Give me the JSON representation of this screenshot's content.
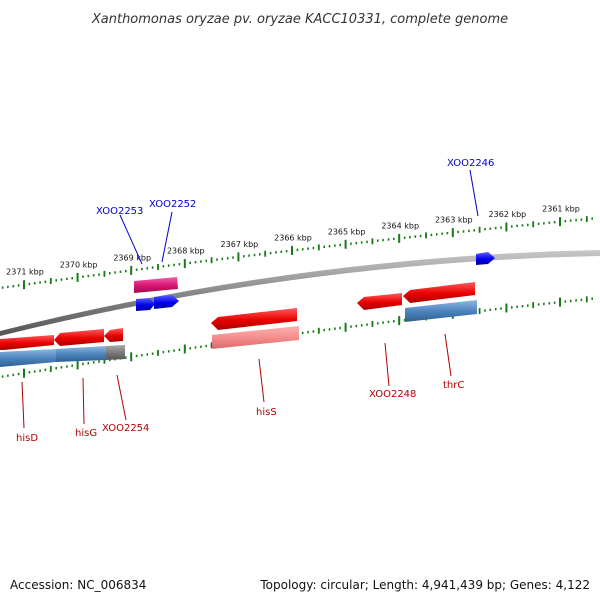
{
  "title": "Xanthomonas oryzae pv. oryzae KACC10331, complete genome",
  "footer": {
    "accession": "Accession: NC_006834",
    "summary": "Topology: circular; Length: 4,941,439 bp; Genes: 4,122"
  },
  "ticks": [
    {
      "label": "2361 kbp",
      "kbp": 2361
    },
    {
      "label": "2362 kbp",
      "kbp": 2362
    },
    {
      "label": "2363 kbp",
      "kbp": 2363
    },
    {
      "label": "2364 kbp",
      "kbp": 2364
    },
    {
      "label": "2365 kbp",
      "kbp": 2365
    },
    {
      "label": "2366 kbp",
      "kbp": 2366
    },
    {
      "label": "2367 kbp",
      "kbp": 2367
    },
    {
      "label": "2368 kbp",
      "kbp": 2368
    },
    {
      "label": "2369 kbp",
      "kbp": 2369
    },
    {
      "label": "2370 kbp",
      "kbp": 2370
    },
    {
      "label": "2371 kbp",
      "kbp": 2371
    }
  ],
  "gene_labels": [
    {
      "id": "XOO2253",
      "text": "XOO2253",
      "strand": "forward"
    },
    {
      "id": "XOO2252",
      "text": "XOO2252",
      "strand": "forward"
    },
    {
      "id": "XOO2246",
      "text": "XOO2246",
      "strand": "forward"
    },
    {
      "id": "hisD",
      "text": "hisD",
      "strand": "reverse"
    },
    {
      "id": "hisG",
      "text": "hisG",
      "strand": "reverse"
    },
    {
      "id": "XOO2254",
      "text": "XOO2254",
      "strand": "reverse"
    },
    {
      "id": "hisS",
      "text": "hisS",
      "strand": "reverse"
    },
    {
      "id": "XOO2248",
      "text": "XOO2248",
      "strand": "reverse"
    },
    {
      "id": "thrC",
      "text": "thrC",
      "strand": "reverse"
    }
  ],
  "colors": {
    "backbone": "#8a8a8a",
    "tick": "#1a7a1a",
    "forward_label": "#0000cc",
    "reverse_label": "#b20000",
    "gene_red": "#ee1111",
    "gene_pink": "#e0207a",
    "gene_blue": "#1111dd",
    "gene_steel": "#4a7fb5",
    "gene_salmon": "#f08080",
    "gene_gray": "#777777"
  }
}
